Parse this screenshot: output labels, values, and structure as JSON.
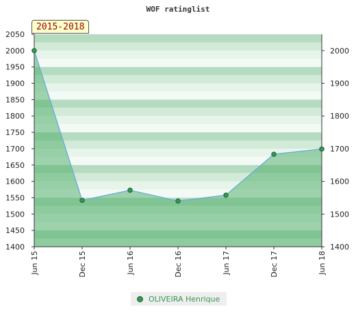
{
  "chart_data": {
    "type": "area",
    "title": "WOF ratinglist",
    "period_label": "2015-2018",
    "categories": [
      "Jun 15",
      "Dec 15",
      "Jun 16",
      "Dec 16",
      "Jun 17",
      "Dec 17",
      "Jun 18"
    ],
    "series": [
      {
        "name": "OLIVEIRA Henrique",
        "values": [
          2000,
          1542,
          1573,
          1540,
          1558,
          1683,
          1699
        ]
      }
    ],
    "ylim": [
      1400,
      2050
    ],
    "yticks_left": [
      1400,
      1450,
      1500,
      1550,
      1600,
      1650,
      1700,
      1750,
      1800,
      1850,
      1900,
      1950,
      2000,
      2050
    ],
    "yticks_right": [
      1400,
      1500,
      1600,
      1700,
      1800,
      1900,
      2000
    ],
    "grid": true,
    "legend_position": "bottom",
    "colors": {
      "fill": "#55b070",
      "line": "#66aadd",
      "marker": "#339955",
      "legend_text": "#339955"
    }
  }
}
